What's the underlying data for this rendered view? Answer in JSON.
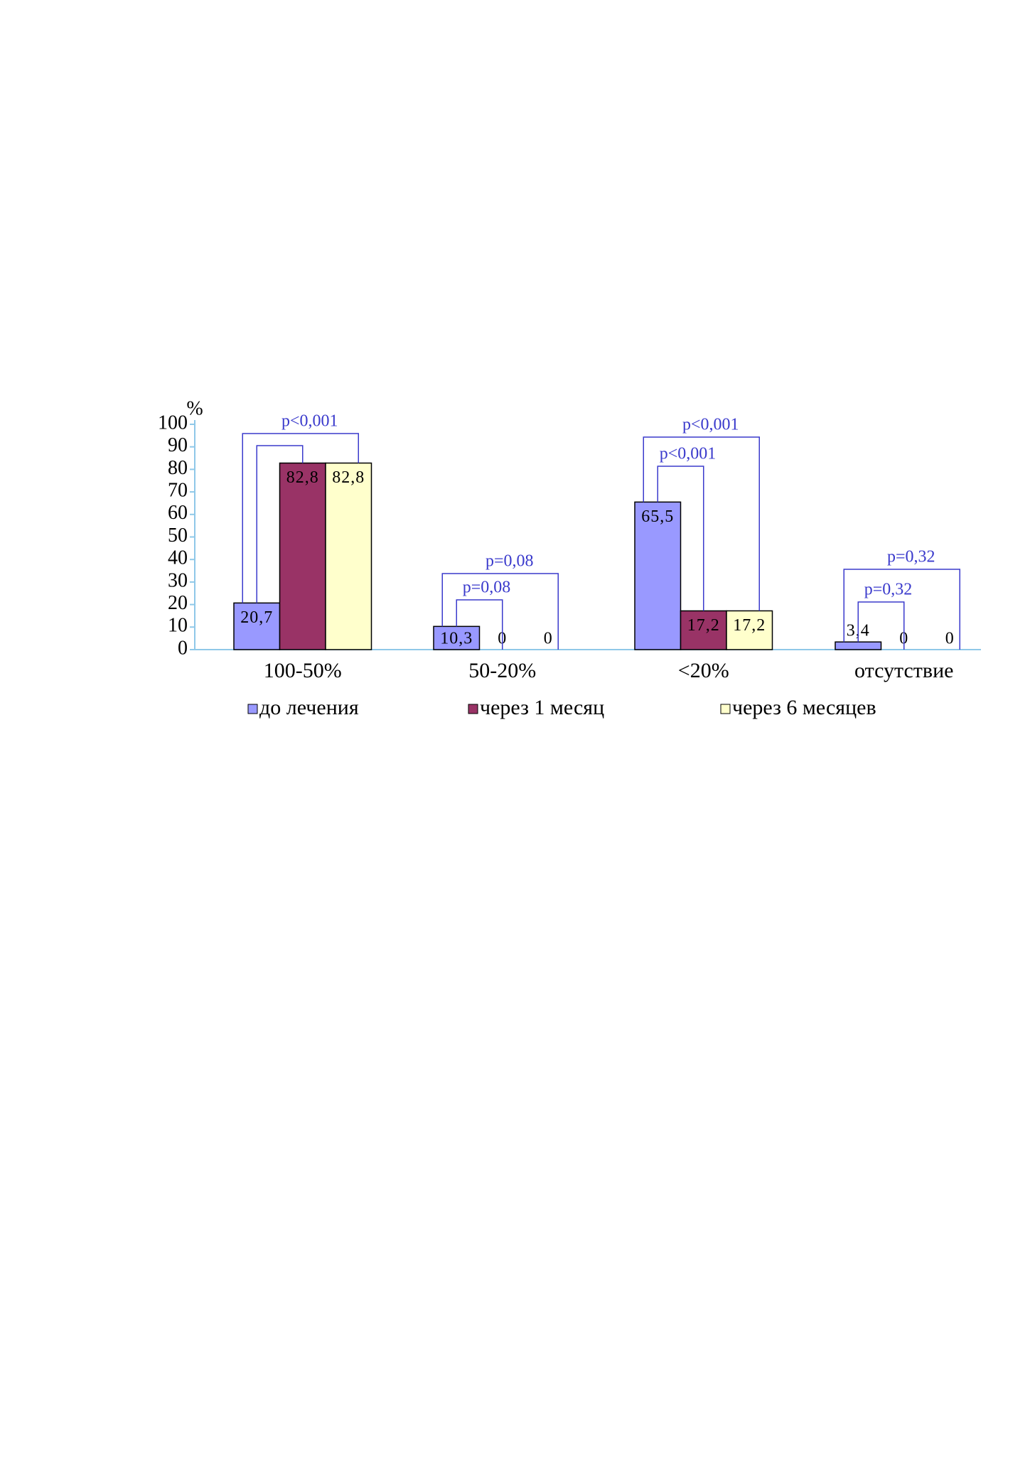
{
  "chart_data": {
    "type": "bar",
    "y_unit": "%",
    "categories": [
      "100-50%",
      "50-20%",
      "<20%",
      "отсутствие"
    ],
    "series": [
      {
        "name": "до лечения",
        "color": "#9999ff",
        "values": [
          20.7,
          10.3,
          65.5,
          3.4
        ],
        "value_labels": [
          "20,7",
          "10,3",
          "65,5",
          "3,4"
        ]
      },
      {
        "name": "через 1 месяц",
        "color": "#993366",
        "values": [
          82.8,
          0,
          17.2,
          0
        ],
        "value_labels": [
          "82,8",
          "0",
          "17,2",
          "0"
        ]
      },
      {
        "name": "через 6 месяцев",
        "color": "#ffffcc",
        "values": [
          82.8,
          0,
          17.2,
          0
        ],
        "value_labels": [
          "82,8",
          "0",
          "17,2",
          "0"
        ]
      }
    ],
    "annotations": [
      [
        "p<0,001"
      ],
      [
        "p=0,08",
        "p=0,08"
      ],
      [
        "p<0,001",
        "p<0,001"
      ],
      [
        "p=0,32",
        "p=0,32"
      ]
    ],
    "ylim": [
      0,
      100
    ],
    "yticks": [
      0,
      10,
      20,
      30,
      40,
      50,
      60,
      70,
      80,
      90,
      100
    ],
    "grid": false,
    "legend": "bottom"
  }
}
